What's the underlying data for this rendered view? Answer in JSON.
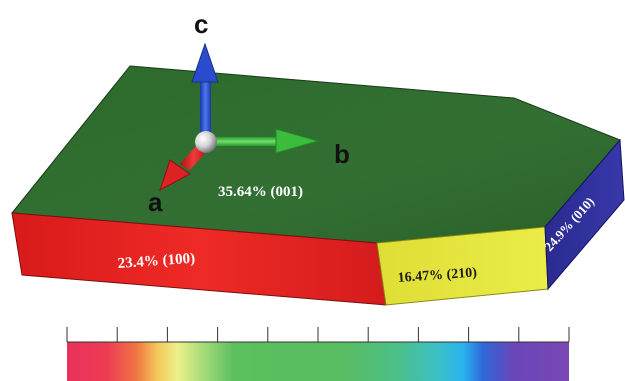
{
  "axes": {
    "a": "a",
    "b": "b",
    "c": "c"
  },
  "faces": {
    "top": "35.64% (001)",
    "front_left": "23.4% (100)",
    "front_mid": "16.47% (210)",
    "right": "24.9% (010)"
  },
  "colors": {
    "top_face": "#2f6b2f",
    "front_left_face": "#e02020",
    "front_mid_face": "#e4e43a",
    "right_face": "#2d2d9a",
    "axis_a": "#d81c1c",
    "axis_b": "#34b334",
    "axis_c": "#2048c8"
  },
  "colorbar": {
    "tick_count": 11
  }
}
